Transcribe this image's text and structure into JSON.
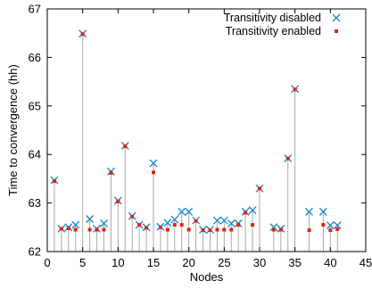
{
  "chart_data": {
    "type": "scatter",
    "xlabel": "Nodes",
    "ylabel": "Time to convergence (hh)",
    "xlim": [
      0,
      45
    ],
    "ylim": [
      62,
      67
    ],
    "xticks": [
      "0",
      "5",
      "10",
      "15",
      "20",
      "25",
      "30",
      "35",
      "40",
      "45"
    ],
    "yticks": [
      "62",
      "63",
      "64",
      "65",
      "66",
      "67"
    ],
    "grid": false,
    "legend_position": "top-right",
    "series": [
      {
        "name": "Transitivity disabled",
        "marker": "x",
        "color": "#1f8fc8",
        "x": [
          1,
          2,
          3,
          4,
          5,
          6,
          7,
          8,
          9,
          10,
          11,
          12,
          13,
          14,
          15,
          16,
          17,
          18,
          19,
          20,
          21,
          22,
          23,
          24,
          25,
          26,
          27,
          28,
          29,
          30,
          32,
          33,
          34,
          35,
          37,
          39,
          40,
          41
        ],
        "y": [
          63.47,
          62.47,
          62.5,
          62.55,
          66.49,
          62.67,
          62.47,
          62.58,
          63.65,
          63.05,
          64.18,
          62.73,
          62.55,
          62.5,
          63.82,
          62.51,
          62.59,
          62.66,
          62.82,
          62.82,
          62.64,
          62.45,
          62.45,
          62.64,
          62.64,
          62.58,
          62.58,
          62.82,
          62.85,
          63.3,
          62.5,
          62.47,
          63.92,
          65.35,
          62.82,
          62.82,
          62.54,
          62.54
        ]
      },
      {
        "name": "Transitivity enabled",
        "marker": "square",
        "color": "#e2231a",
        "x": [
          1,
          2,
          3,
          4,
          5,
          6,
          7,
          8,
          9,
          10,
          11,
          12,
          13,
          14,
          15,
          16,
          17,
          18,
          19,
          20,
          21,
          22,
          23,
          24,
          25,
          26,
          27,
          28,
          29,
          30,
          32,
          33,
          34,
          35,
          37,
          39,
          40,
          41
        ],
        "y": [
          63.45,
          62.47,
          62.48,
          62.45,
          66.48,
          62.45,
          62.45,
          62.45,
          63.62,
          63.03,
          64.17,
          62.72,
          62.55,
          62.49,
          63.63,
          62.5,
          62.45,
          62.55,
          62.55,
          62.45,
          62.63,
          62.44,
          62.44,
          62.45,
          62.45,
          62.45,
          62.55,
          62.8,
          62.55,
          63.3,
          62.45,
          62.45,
          63.92,
          65.34,
          62.44,
          62.55,
          62.44,
          62.46
        ]
      }
    ]
  }
}
